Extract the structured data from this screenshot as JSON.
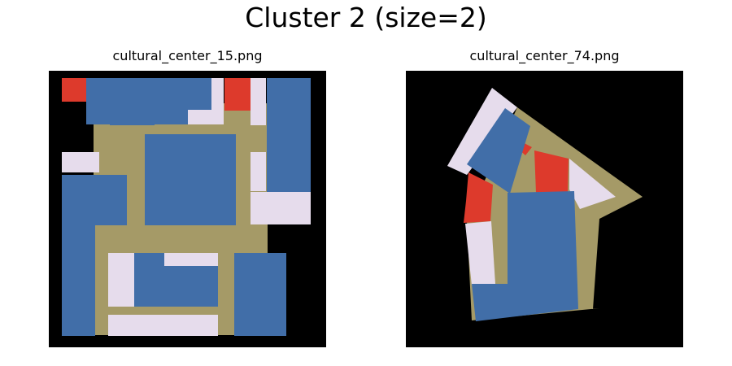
{
  "figure": {
    "title": "Cluster 2 (size=2)"
  },
  "panels": [
    {
      "filename": "cultural_center_15.png"
    },
    {
      "filename": "cultural_center_74.png"
    }
  ],
  "legend_colors": {
    "background": "#000000",
    "corridor": "#a59a67",
    "room_blue": "#416ea8",
    "room_light": "#e6dcec",
    "room_red": "#dd3a2c"
  }
}
